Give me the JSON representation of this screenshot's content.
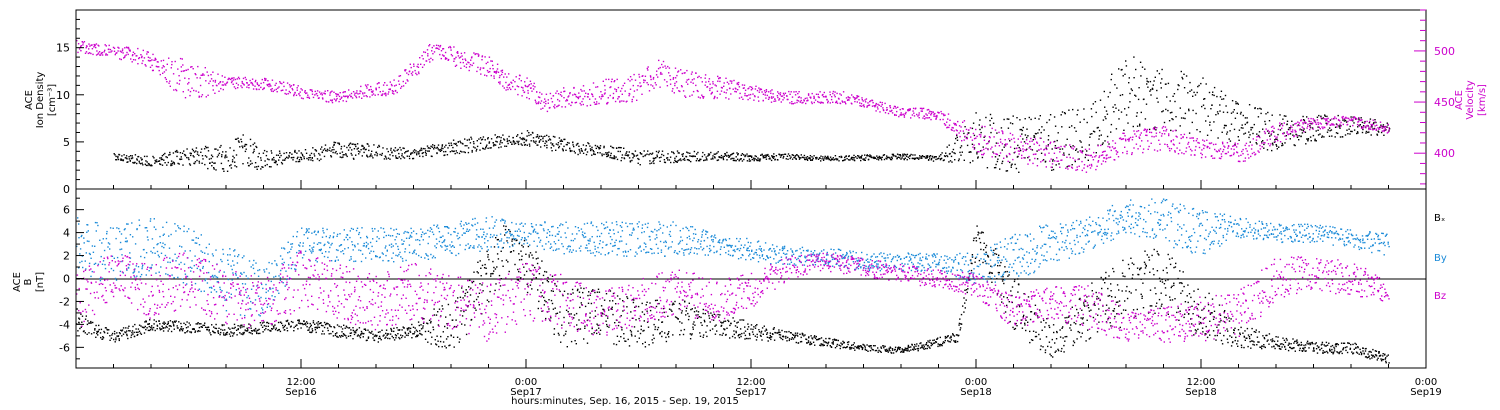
{
  "chart_data": [
    {
      "type": "scatter",
      "panel": "top",
      "x_range_hours": [
        0,
        72
      ],
      "x_start": "Sep 16, 2015 00:00",
      "left_axis": {
        "label_lines": [
          "ACE",
          "Ion Density",
          "[cm⁻³]"
        ],
        "ylim": [
          0,
          19
        ],
        "ticks": [
          0,
          5,
          10,
          15
        ],
        "color": "#000000"
      },
      "right_axis": {
        "label_lines": [
          "ACE",
          "Velocity",
          "[km/s]"
        ],
        "ylim": [
          365,
          540
        ],
        "ticks": [
          400,
          450,
          500
        ],
        "color": "#cc00cc"
      },
      "series": [
        {
          "name": "Ion Density",
          "axis": "left",
          "color": "#000000",
          "x": [
            2,
            4,
            6,
            8,
            9,
            10,
            12,
            14,
            16,
            18,
            20,
            22,
            24,
            26,
            28,
            30,
            32,
            34,
            36,
            38,
            40,
            42,
            44,
            46,
            48,
            50,
            52,
            54,
            56,
            58,
            60,
            62,
            64,
            66,
            68,
            70
          ],
          "values": [
            3.5,
            3.0,
            3.6,
            3.3,
            4.0,
            3.2,
            3.6,
            4.2,
            4.0,
            3.8,
            4.5,
            5.0,
            5.5,
            4.6,
            4.2,
            3.4,
            3.5,
            3.6,
            3.4,
            3.5,
            3.3,
            3.4,
            3.5,
            3.3,
            5.5,
            4.8,
            5.0,
            6.0,
            10.5,
            9.5,
            9.0,
            7.0,
            6.0,
            6.5,
            6.8,
            6.5
          ],
          "spread": [
            0.5,
            0.5,
            1.0,
            1.5,
            2.0,
            1.0,
            0.6,
            1.0,
            0.8,
            0.5,
            0.8,
            0.8,
            0.8,
            0.8,
            0.6,
            0.8,
            0.6,
            0.5,
            0.4,
            0.3,
            0.3,
            0.3,
            0.3,
            0.3,
            3.0,
            3.0,
            3.0,
            3.0,
            4.0,
            3.5,
            3.0,
            2.5,
            2.0,
            1.5,
            1.0,
            0.8
          ]
        },
        {
          "name": "Velocity",
          "axis": "right",
          "color": "#cc00cc",
          "x": [
            0,
            2,
            3.5,
            4.5,
            5.5,
            6.5,
            8,
            10,
            11,
            12,
            14,
            15,
            17,
            19,
            21,
            22,
            23,
            24,
            25,
            26,
            28,
            30,
            31,
            32,
            34,
            36,
            38,
            40,
            41,
            42,
            43,
            44,
            45,
            46,
            48,
            50,
            52,
            54,
            56,
            58,
            60,
            62,
            64,
            65,
            66,
            68,
            70
          ],
          "values": [
            505,
            500,
            495,
            485,
            475,
            470,
            470,
            468,
            465,
            460,
            455,
            460,
            465,
            500,
            490,
            485,
            470,
            465,
            450,
            455,
            460,
            465,
            480,
            470,
            465,
            460,
            455,
            455,
            455,
            450,
            445,
            440,
            440,
            437,
            415,
            405,
            400,
            393,
            410,
            415,
            405,
            400,
            420,
            425,
            430,
            432,
            425
          ],
          "spread": [
            6,
            6,
            8,
            8,
            20,
            18,
            6,
            6,
            6,
            6,
            6,
            6,
            8,
            10,
            10,
            10,
            10,
            10,
            10,
            10,
            12,
            14,
            14,
            14,
            12,
            8,
            6,
            6,
            6,
            5,
            5,
            5,
            5,
            5,
            15,
            14,
            14,
            12,
            12,
            12,
            10,
            10,
            10,
            8,
            6,
            5,
            5
          ]
        }
      ]
    },
    {
      "type": "scatter",
      "panel": "bottom",
      "x_range_hours": [
        0,
        72
      ],
      "left_axis": {
        "label_lines": [
          "ACE",
          "B",
          "[nT]"
        ],
        "ylim": [
          -7.8,
          7.8
        ],
        "ticks": [
          -6,
          -4,
          -2,
          0,
          2,
          4,
          6
        ],
        "color": "#000000"
      },
      "legend_position": "right",
      "series": [
        {
          "name": "Bₓ",
          "color": "#000000",
          "x": [
            0,
            1,
            2,
            3,
            4,
            6,
            8,
            10,
            12,
            14,
            16,
            18,
            20,
            22,
            23,
            24,
            26,
            28,
            30,
            32,
            34,
            36,
            38,
            40,
            42,
            44,
            46,
            47,
            48,
            50,
            52,
            54,
            56,
            58,
            60,
            62,
            64,
            66,
            68,
            70
          ],
          "values": [
            -3.5,
            -4.5,
            -5.0,
            -4.5,
            -4.0,
            -4.2,
            -4.5,
            -4.2,
            -4.0,
            -4.5,
            -5.0,
            -4.5,
            -4.0,
            0.0,
            3.0,
            1.0,
            -3.5,
            -3.0,
            -4.0,
            -3.5,
            -4.0,
            -4.5,
            -5.0,
            -5.5,
            -6.0,
            -6.2,
            -5.5,
            -5.0,
            3.5,
            -2.0,
            -5.5,
            -3.0,
            -1.0,
            0.0,
            -3.0,
            -5.0,
            -5.5,
            -6.0,
            -6.0,
            -7.0
          ],
          "spread": [
            1.0,
            0.6,
            0.5,
            0.6,
            0.5,
            0.5,
            0.5,
            0.5,
            0.5,
            0.6,
            0.5,
            0.6,
            2.5,
            3.0,
            2.5,
            2.5,
            2.5,
            2.5,
            2.0,
            2.0,
            1.0,
            0.8,
            0.5,
            0.4,
            0.3,
            0.3,
            0.4,
            0.5,
            1.5,
            2.5,
            1.5,
            2.5,
            3.0,
            3.0,
            2.5,
            1.0,
            0.6,
            0.5,
            0.5,
            0.4
          ]
        },
        {
          "name": "By",
          "color": "#1a8ad8",
          "x": [
            0,
            2,
            4,
            6,
            8,
            10,
            12,
            14,
            16,
            18,
            20,
            22,
            24,
            26,
            28,
            30,
            32,
            34,
            36,
            38,
            40,
            42,
            44,
            46,
            48,
            50,
            52,
            54,
            56,
            58,
            60,
            62,
            64,
            66,
            68,
            70
          ],
          "values": [
            3.0,
            2.0,
            3.0,
            2.0,
            0.0,
            -1.0,
            3.0,
            3.0,
            3.0,
            3.0,
            3.5,
            4.0,
            4.0,
            3.5,
            3.5,
            3.5,
            3.5,
            3.0,
            2.5,
            2.0,
            2.0,
            1.5,
            1.5,
            1.5,
            1.0,
            2.0,
            3.0,
            4.0,
            5.5,
            5.0,
            4.0,
            4.5,
            4.0,
            4.0,
            3.5,
            3.0
          ],
          "spread": [
            2.5,
            2.5,
            2.5,
            2.5,
            3.0,
            2.5,
            1.5,
            1.5,
            1.5,
            1.5,
            1.5,
            1.5,
            1.0,
            1.5,
            1.5,
            1.5,
            1.5,
            1.0,
            1.0,
            0.8,
            0.8,
            0.8,
            0.8,
            0.8,
            1.5,
            2.0,
            2.0,
            1.5,
            1.5,
            2.0,
            2.0,
            1.0,
            0.8,
            0.8,
            0.8,
            1.0
          ]
        },
        {
          "name": "Bz",
          "color": "#cc00cc",
          "x": [
            0,
            2,
            4,
            6,
            8,
            10,
            12,
            14,
            16,
            18,
            20,
            22,
            24,
            26,
            28,
            30,
            32,
            34,
            36,
            38,
            40,
            42,
            44,
            46,
            48,
            50,
            52,
            54,
            56,
            58,
            60,
            62,
            64,
            66,
            68,
            70
          ],
          "values": [
            -2.0,
            0.5,
            -1.0,
            0.0,
            -1.5,
            -2.0,
            0.0,
            -1.0,
            -2.0,
            -1.0,
            -2.0,
            -3.0,
            -1.0,
            -2.0,
            -3.0,
            -2.0,
            -1.0,
            -2.0,
            -1.0,
            1.0,
            1.5,
            1.0,
            0.5,
            0.0,
            -0.5,
            -3.0,
            -2.0,
            -2.5,
            -4.0,
            -4.0,
            -3.5,
            -3.0,
            0.0,
            0.5,
            0.0,
            -1.0
          ],
          "spread": [
            2.5,
            2.0,
            2.5,
            2.5,
            2.5,
            2.5,
            2.5,
            2.5,
            2.5,
            2.5,
            2.5,
            2.5,
            2.5,
            2.5,
            2.0,
            2.0,
            2.0,
            2.0,
            1.5,
            1.0,
            0.8,
            0.8,
            0.8,
            0.8,
            1.0,
            1.5,
            1.5,
            2.0,
            1.5,
            1.5,
            2.0,
            2.0,
            2.0,
            1.5,
            1.5,
            1.0
          ]
        }
      ]
    }
  ],
  "x_axis": {
    "ticks": [
      {
        "hours": 12,
        "time": "12:00",
        "date": "Sep16"
      },
      {
        "hours": 24,
        "time": "0:00",
        "date": "Sep17"
      },
      {
        "hours": 36,
        "time": "12:00",
        "date": "Sep17"
      },
      {
        "hours": 48,
        "time": "0:00",
        "date": "Sep18"
      },
      {
        "hours": 60,
        "time": "12:00",
        "date": "Sep18"
      },
      {
        "hours": 72,
        "time": "0:00",
        "date": "Sep19"
      }
    ],
    "title": "hours:minutes, Sep. 16, 2015 - Sep. 19, 2015"
  },
  "labels": {
    "top_left_line1": "ACE",
    "top_left_line2": "Ion Density",
    "top_left_line3": "[cm⁻³]",
    "top_right_line1": "ACE",
    "top_right_line2": "Velocity",
    "top_right_line3": "[km/s]",
    "bottom_left_line1": "ACE",
    "bottom_left_line2": "B",
    "bottom_left_line3": "[nT]",
    "legend_bx": "Bₓ",
    "legend_by": "By",
    "legend_bz": "Bz"
  },
  "colors": {
    "black": "#000000",
    "magenta": "#cc00cc",
    "blue": "#1a8ad8"
  }
}
